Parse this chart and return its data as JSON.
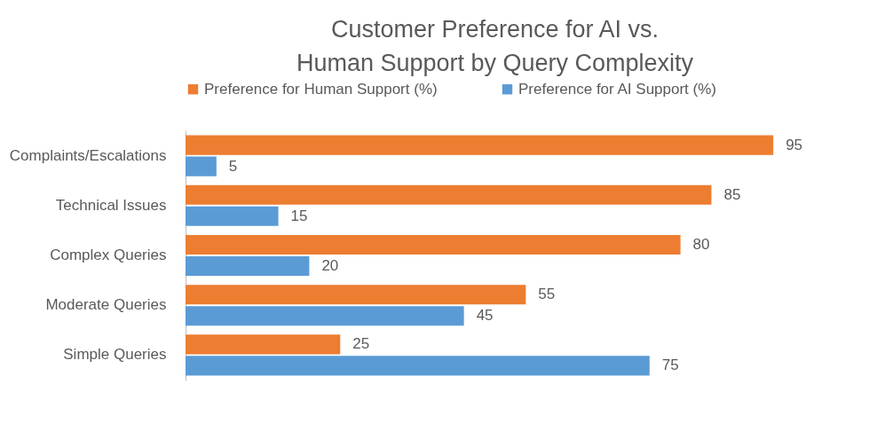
{
  "chart_data": {
    "type": "bar",
    "orientation": "horizontal",
    "title": "Customer Preference for AI vs. Human Support by Query Complexity",
    "categories": [
      "Complaints/Escalations",
      "Technical Issues",
      "Complex Queries",
      "Moderate Queries",
      "Simple Queries"
    ],
    "series": [
      {
        "name": "Preference for Human Support (%)",
        "color": "#ed7d31",
        "values": [
          95,
          85,
          80,
          55,
          25
        ]
      },
      {
        "name": "Preference for AI Support (%)",
        "color": "#5b9bd5",
        "values": [
          5,
          15,
          20,
          45,
          75
        ]
      }
    ],
    "data_labels": true,
    "legend": "top"
  }
}
